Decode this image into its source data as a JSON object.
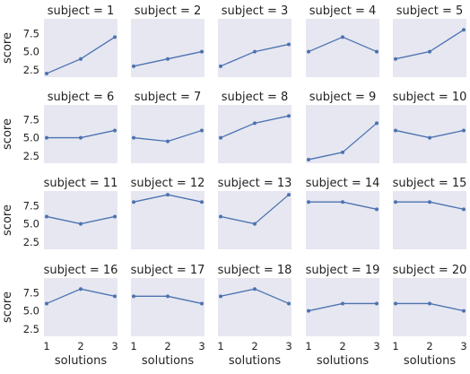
{
  "chart_data": {
    "type": "line",
    "layout": "facet-grid",
    "columns": 5,
    "rows": 4,
    "xlabel": "solutions",
    "ylabel": "score",
    "x": [
      1,
      2,
      3
    ],
    "xticks": [
      "1",
      "2",
      "3"
    ],
    "xlim": [
      1,
      3
    ],
    "yticks": [
      2.5,
      5.0,
      7.5
    ],
    "ytick_labels": [
      "2.5",
      "5.0",
      "7.5"
    ],
    "ylim": [
      1.5,
      9.5
    ],
    "grid": false,
    "color": "#4c72b0",
    "background": "#e6e7f1",
    "facets": [
      {
        "title": "subject = 1",
        "values": [
          2,
          4,
          7
        ]
      },
      {
        "title": "subject = 2",
        "values": [
          3,
          4,
          5
        ]
      },
      {
        "title": "subject = 3",
        "values": [
          3,
          5,
          6
        ]
      },
      {
        "title": "subject = 4",
        "values": [
          5,
          7,
          5
        ]
      },
      {
        "title": "subject = 5",
        "values": [
          4,
          5,
          8
        ]
      },
      {
        "title": "subject = 6",
        "values": [
          5,
          5,
          6
        ]
      },
      {
        "title": "subject = 7",
        "values": [
          5,
          4.5,
          6
        ]
      },
      {
        "title": "subject = 8",
        "values": [
          5,
          7,
          8
        ]
      },
      {
        "title": "subject = 9",
        "values": [
          2,
          3,
          7
        ]
      },
      {
        "title": "subject = 10",
        "values": [
          6,
          5,
          6
        ]
      },
      {
        "title": "subject = 11",
        "values": [
          6,
          5,
          6
        ]
      },
      {
        "title": "subject = 12",
        "values": [
          8,
          9,
          8
        ]
      },
      {
        "title": "subject = 13",
        "values": [
          6,
          5,
          9
        ]
      },
      {
        "title": "subject = 14",
        "values": [
          8,
          8,
          7
        ]
      },
      {
        "title": "subject = 15",
        "values": [
          8,
          8,
          7
        ]
      },
      {
        "title": "subject = 16",
        "values": [
          6,
          8,
          7
        ]
      },
      {
        "title": "subject = 17",
        "values": [
          7,
          7,
          6
        ]
      },
      {
        "title": "subject = 18",
        "values": [
          7,
          8,
          6
        ]
      },
      {
        "title": "subject = 19",
        "values": [
          5,
          6,
          6
        ]
      },
      {
        "title": "subject = 20",
        "values": [
          6,
          6,
          5
        ]
      }
    ]
  }
}
